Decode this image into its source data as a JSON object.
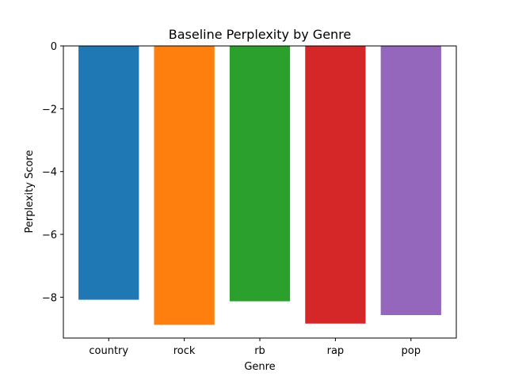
{
  "chart_data": {
    "type": "bar",
    "title": "Baseline Perplexity by Genre",
    "xlabel": "Genre",
    "ylabel": "Perplexity Score",
    "categories": [
      "country",
      "rock",
      "rb",
      "rap",
      "pop"
    ],
    "values": [
      -8.08,
      -8.88,
      -8.13,
      -8.84,
      -8.57
    ],
    "colors": [
      "#1f77b4",
      "#ff7f0e",
      "#2ca02c",
      "#d62728",
      "#9467bd"
    ],
    "ylim": [
      -9.3,
      0
    ],
    "yticks": [
      0,
      -2,
      -4,
      -6,
      -8
    ],
    "ytick_labels": [
      "0",
      "−2",
      "−4",
      "−6",
      "−8"
    ],
    "grid": false,
    "legend": "none"
  }
}
